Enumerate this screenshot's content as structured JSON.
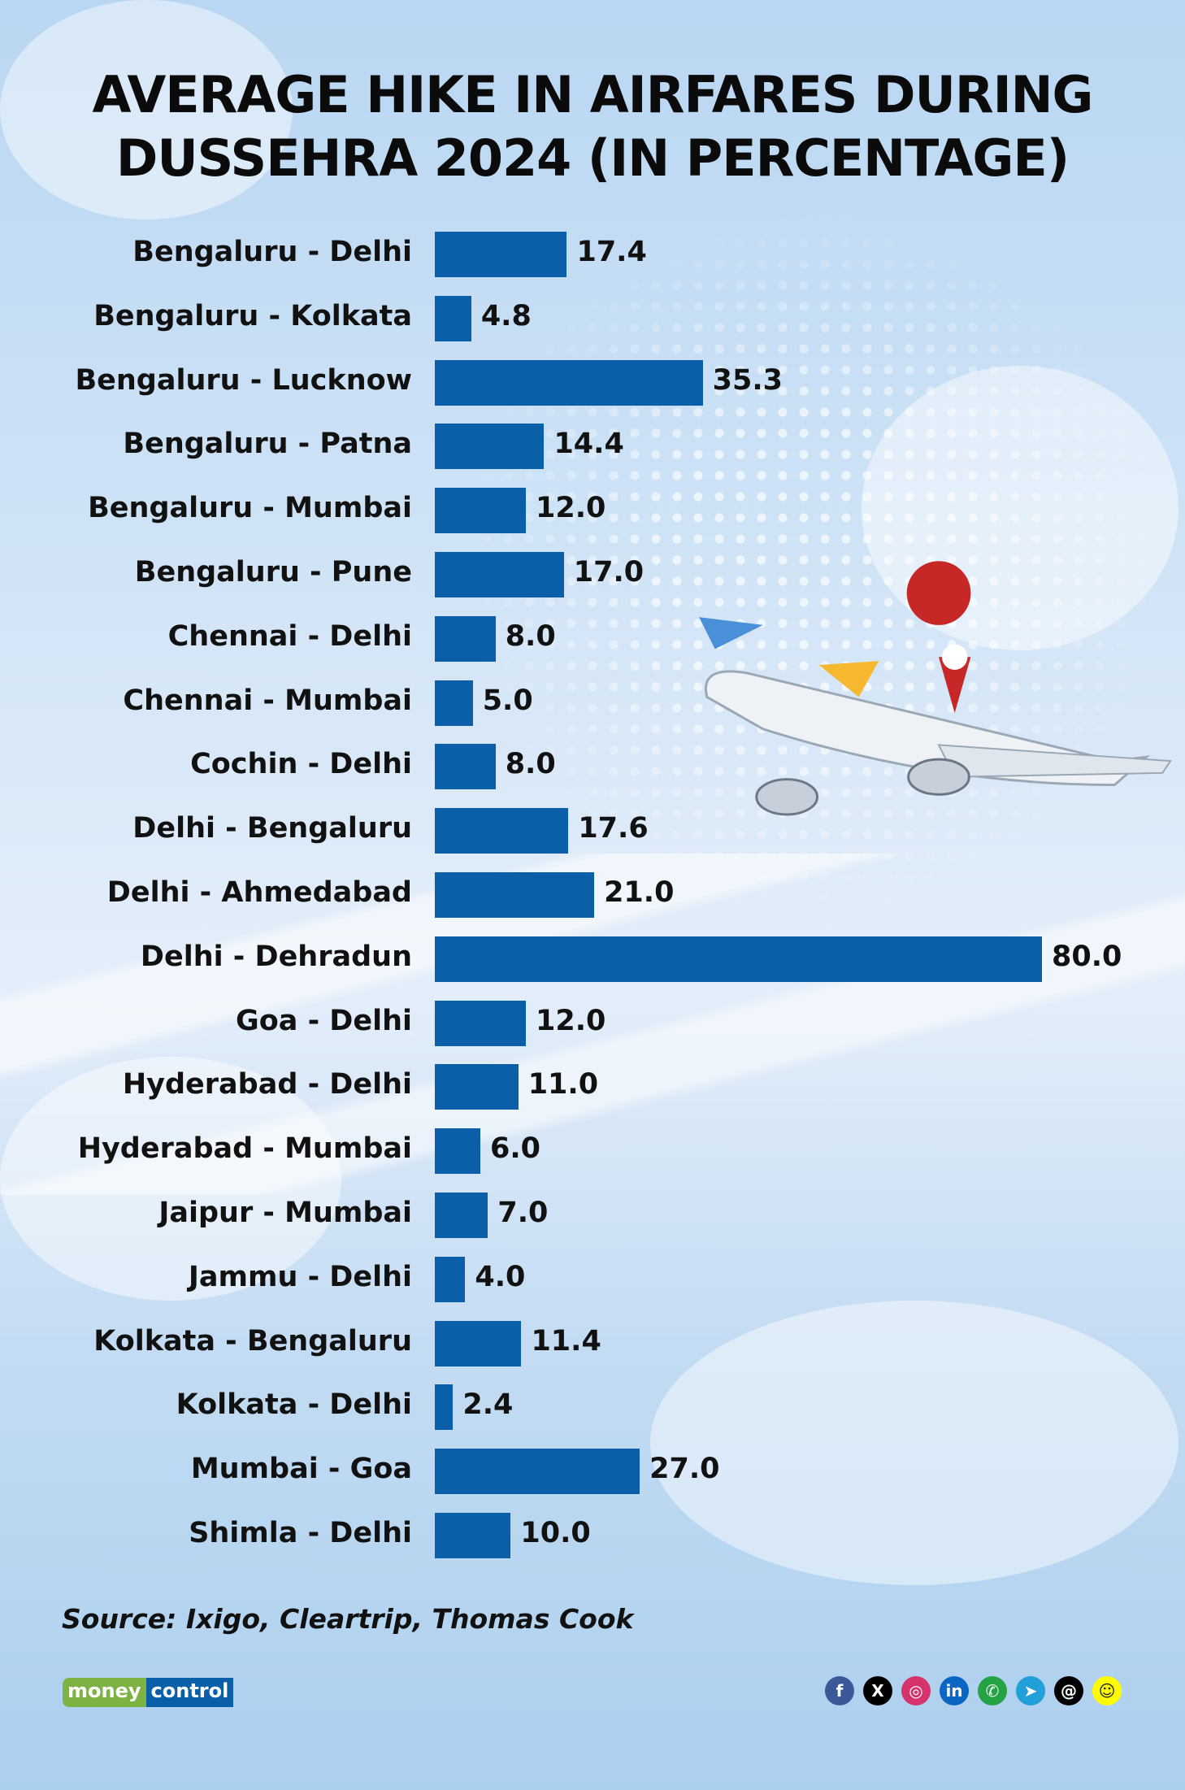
{
  "chart_data": {
    "type": "bar",
    "orientation": "horizontal",
    "title": "AVERAGE HIKE IN AIRFARES DURING DUSSEHRA 2024 (IN PERCENTAGE)",
    "title_lines": [
      "AVERAGE HIKE IN AIRFARES DURING",
      "DUSSEHRA 2024 (IN PERCENTAGE)"
    ],
    "categories": [
      "Bengaluru - Delhi",
      "Bengaluru - Kolkata",
      "Bengaluru - Lucknow",
      "Bengaluru - Patna",
      "Bengaluru - Mumbai",
      "Bengaluru - Pune",
      "Chennai - Delhi",
      "Chennai - Mumbai",
      "Cochin - Delhi",
      "Delhi - Bengaluru",
      "Delhi - Ahmedabad",
      "Delhi - Dehradun",
      "Goa - Delhi",
      "Hyderabad - Delhi",
      "Hyderabad - Mumbai",
      "Jaipur - Mumbai",
      "Jammu - Delhi",
      "Kolkata - Bengaluru",
      "Kolkata - Delhi",
      "Mumbai - Goa",
      "Shimla - Delhi"
    ],
    "values": [
      17.4,
      4.8,
      35.3,
      14.4,
      12.0,
      17.0,
      8.0,
      5.0,
      8.0,
      17.6,
      21.0,
      80.0,
      12.0,
      11.0,
      6.0,
      7.0,
      4.0,
      11.4,
      2.4,
      27.0,
      10.0
    ],
    "value_labels": [
      "17.4",
      "4.8",
      "35.3",
      "14.4",
      "12.0",
      "17.0",
      "8.0",
      "5.0",
      "8.0",
      "17.6",
      "21.0",
      "80.0",
      "12.0",
      "11.0",
      "6.0",
      "7.0",
      "4.0",
      "11.4",
      "2.4",
      "27.0",
      "10.0"
    ],
    "xlim": [
      0,
      80
    ],
    "grid": false,
    "bar_color": "#0a5fa8"
  },
  "source": "Source: Ixigo, Cleartrip, Thomas Cook",
  "logo": {
    "part1": "money",
    "part2": "control",
    "green": "#7cb342",
    "blue": "#0a5fa8"
  },
  "social": [
    {
      "icon": "facebook-icon",
      "glyph": "f",
      "color": "#3b5998"
    },
    {
      "icon": "x-icon",
      "glyph": "X",
      "color": "#000000"
    },
    {
      "icon": "instagram-icon",
      "glyph": "◎",
      "color": "#d6336c"
    },
    {
      "icon": "linkedin-icon",
      "glyph": "in",
      "color": "#0a66c2"
    },
    {
      "icon": "whatsapp-icon",
      "glyph": "✆",
      "color": "#25a244"
    },
    {
      "icon": "telegram-icon",
      "glyph": "➤",
      "color": "#229ed9"
    },
    {
      "icon": "threads-icon",
      "glyph": "@",
      "color": "#000000"
    },
    {
      "icon": "snapchat-icon",
      "glyph": "☺",
      "color": "#fffc00"
    }
  ]
}
